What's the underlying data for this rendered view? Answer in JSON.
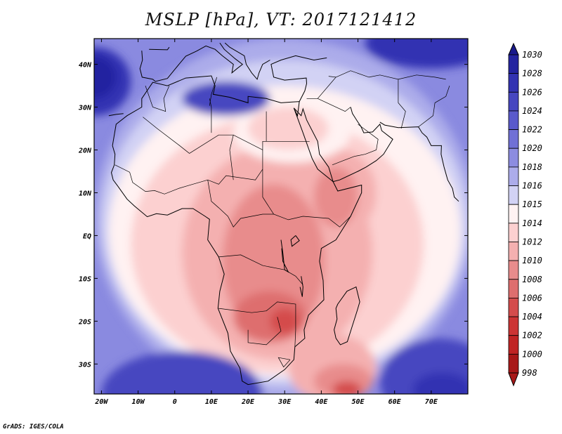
{
  "title": "MSLP [hPa], VT: 2017121412",
  "credit": "GrADS: IGES/COLA",
  "map": {
    "lon_range": [
      -22,
      80
    ],
    "lat_range": [
      -37,
      46
    ],
    "lon_ticks": [
      {
        "value": -20,
        "label": "20W"
      },
      {
        "value": -10,
        "label": "10W"
      },
      {
        "value": 0,
        "label": "0"
      },
      {
        "value": 10,
        "label": "10E"
      },
      {
        "value": 20,
        "label": "20E"
      },
      {
        "value": 30,
        "label": "30E"
      },
      {
        "value": 40,
        "label": "40E"
      },
      {
        "value": 50,
        "label": "50E"
      },
      {
        "value": 60,
        "label": "60E"
      },
      {
        "value": 70,
        "label": "70E"
      }
    ],
    "lat_ticks": [
      {
        "value": 40,
        "label": "40N"
      },
      {
        "value": 30,
        "label": "30N"
      },
      {
        "value": 20,
        "label": "20N"
      },
      {
        "value": 10,
        "label": "10N"
      },
      {
        "value": 0,
        "label": "EQ"
      },
      {
        "value": -10,
        "label": "10S"
      },
      {
        "value": -20,
        "label": "20S"
      },
      {
        "value": -30,
        "label": "30S"
      }
    ],
    "pressure_regions": [
      {
        "level": 1016,
        "lon": 30,
        "lat": 4,
        "rx": 52,
        "ry": 42
      },
      {
        "level": 1015,
        "lon": 30,
        "lat": 3,
        "rx": 50,
        "ry": 38
      },
      {
        "level": 1014,
        "lon": 30,
        "lat": 1,
        "rx": 48,
        "ry": 34
      },
      {
        "level": 1012,
        "lon": 28,
        "lat": -2,
        "rx": 40,
        "ry": 30
      },
      {
        "level": 1010,
        "lon": 28,
        "lat": -4,
        "rx": 26,
        "ry": 25
      },
      {
        "level": 1010,
        "lon": 45,
        "lat": 10,
        "rx": 10,
        "ry": 10
      },
      {
        "level": 1008,
        "lon": 27,
        "lat": -6,
        "rx": 14,
        "ry": 18
      },
      {
        "level": 1008,
        "lon": 44,
        "lat": 9,
        "rx": 6,
        "ry": 7
      },
      {
        "level": 1006,
        "lon": 26,
        "lat": -19,
        "rx": 10,
        "ry": 6
      },
      {
        "level": 1004,
        "lon": 30,
        "lat": -20,
        "rx": 4,
        "ry": 3
      },
      {
        "level": 1010,
        "lon": 43,
        "lat": -31,
        "rx": 12,
        "ry": 8
      },
      {
        "level": 1008,
        "lon": 46,
        "lat": -34,
        "rx": 8,
        "ry": 4
      },
      {
        "level": 1004,
        "lon": 47,
        "lat": -36,
        "rx": 4,
        "ry": 2
      },
      {
        "level": 1014,
        "lon": 32,
        "lat": 24,
        "rx": 16,
        "ry": 7
      },
      {
        "level": 1012,
        "lon": 31,
        "lat": 25,
        "rx": 11,
        "ry": 5
      },
      {
        "level": 1026,
        "lon": -22,
        "lat": 36,
        "rx": 10,
        "ry": 8
      },
      {
        "level": 1028,
        "lon": -22,
        "lat": 37,
        "rx": 6,
        "ry": 5
      },
      {
        "level": 1024,
        "lon": 14,
        "lat": 32,
        "rx": 12,
        "ry": 4
      },
      {
        "level": 1026,
        "lon": 70,
        "lat": 45,
        "rx": 18,
        "ry": 6
      },
      {
        "level": 1024,
        "lon": 2,
        "lat": -37,
        "rx": 22,
        "ry": 10
      },
      {
        "level": 1024,
        "lon": 72,
        "lat": -34,
        "rx": 16,
        "ry": 10
      },
      {
        "level": 1026,
        "lon": 73,
        "lat": -36,
        "rx": 8,
        "ry": 4
      }
    ]
  },
  "colorbar": {
    "levels": [
      1030,
      1028,
      1026,
      1024,
      1022,
      1020,
      1018,
      1016,
      1015,
      1014,
      1012,
      1010,
      1008,
      1006,
      1004,
      1002,
      1000,
      998
    ],
    "colors": [
      "#1a1a8c",
      "#2424a0",
      "#3333b2",
      "#4646c0",
      "#5a5acc",
      "#7070d6",
      "#8c8ce0",
      "#acacea",
      "#d2d2f4",
      "#fff2f2",
      "#fcd0d0",
      "#f4b0b0",
      "#e88c8c",
      "#de6e6e",
      "#d44c4c",
      "#cc3434",
      "#c02424",
      "#a81818"
    ]
  }
}
